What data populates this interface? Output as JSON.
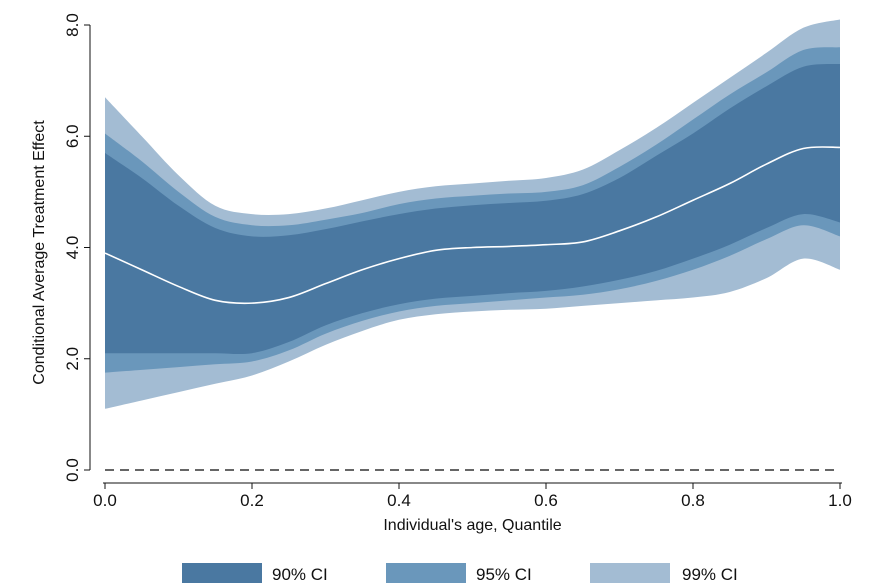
{
  "chart_data": {
    "type": "area",
    "xlabel": "Individual's age, Quantile",
    "ylabel": "Conditional Average Treatment Effect",
    "xlim": [
      0.0,
      1.0
    ],
    "ylim": [
      0.0,
      8.0
    ],
    "x_ticks": [
      "0.0",
      "0.2",
      "0.4",
      "0.6",
      "0.8",
      "1.0"
    ],
    "y_ticks": [
      "0.0",
      "2.0",
      "4.0",
      "6.0",
      "8.0"
    ],
    "grid": false,
    "legend_position": "bottom",
    "x": [
      0.0,
      0.05,
      0.1,
      0.15,
      0.2,
      0.25,
      0.3,
      0.35,
      0.4,
      0.45,
      0.5,
      0.55,
      0.6,
      0.65,
      0.7,
      0.75,
      0.8,
      0.85,
      0.9,
      0.95,
      1.0
    ],
    "estimate": [
      3.9,
      3.6,
      3.3,
      3.05,
      3.0,
      3.1,
      3.35,
      3.6,
      3.8,
      3.95,
      4.0,
      4.02,
      4.05,
      4.1,
      4.3,
      4.55,
      4.85,
      5.15,
      5.5,
      5.78,
      5.8
    ],
    "series": [
      {
        "name": "99% CI",
        "color": "#a3bcd3",
        "lower": [
          1.1,
          1.25,
          1.4,
          1.55,
          1.7,
          1.95,
          2.25,
          2.5,
          2.7,
          2.8,
          2.85,
          2.88,
          2.9,
          2.95,
          3.0,
          3.05,
          3.1,
          3.2,
          3.45,
          3.8,
          3.6
        ],
        "upper": [
          6.7,
          6.0,
          5.3,
          4.75,
          4.6,
          4.6,
          4.7,
          4.85,
          5.0,
          5.1,
          5.15,
          5.2,
          5.25,
          5.4,
          5.75,
          6.15,
          6.6,
          7.05,
          7.5,
          7.95,
          8.1
        ]
      },
      {
        "name": "95% CI",
        "color": "#6a97bb",
        "lower": [
          1.75,
          1.8,
          1.85,
          1.9,
          1.95,
          2.15,
          2.45,
          2.68,
          2.85,
          2.95,
          3.0,
          3.05,
          3.1,
          3.15,
          3.25,
          3.4,
          3.6,
          3.85,
          4.15,
          4.4,
          4.2
        ],
        "upper": [
          6.05,
          5.55,
          5.0,
          4.55,
          4.4,
          4.4,
          4.5,
          4.62,
          4.78,
          4.88,
          4.93,
          4.97,
          5.0,
          5.12,
          5.45,
          5.85,
          6.3,
          6.75,
          7.15,
          7.55,
          7.6
        ]
      },
      {
        "name": "90% CI",
        "color": "#4a78a1",
        "lower": [
          2.1,
          2.1,
          2.1,
          2.1,
          2.1,
          2.3,
          2.6,
          2.82,
          2.98,
          3.08,
          3.13,
          3.18,
          3.22,
          3.3,
          3.42,
          3.58,
          3.8,
          4.05,
          4.35,
          4.6,
          4.45
        ],
        "upper": [
          5.7,
          5.25,
          4.75,
          4.35,
          4.2,
          4.22,
          4.33,
          4.47,
          4.6,
          4.7,
          4.76,
          4.8,
          4.84,
          4.96,
          5.25,
          5.65,
          6.05,
          6.5,
          6.9,
          7.25,
          7.3
        ]
      }
    ],
    "reference_line": {
      "y": 0.0,
      "style": "dashed"
    }
  }
}
